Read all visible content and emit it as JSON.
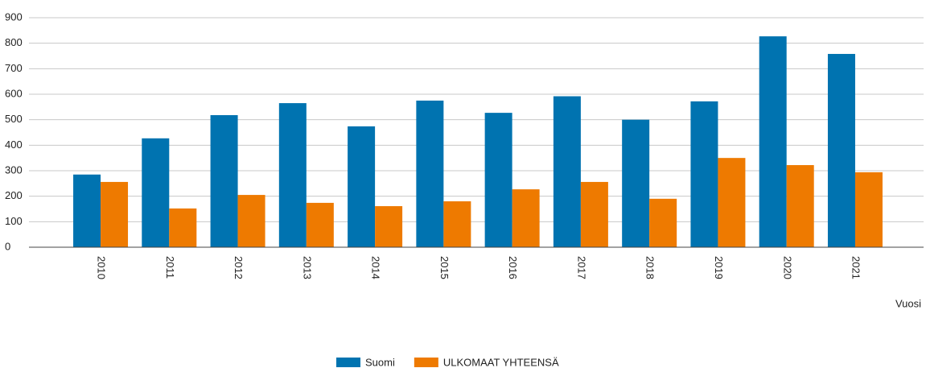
{
  "chart_data": {
    "type": "bar",
    "x_label": "Vuosi",
    "categories": [
      "2010",
      "2011",
      "2012",
      "2013",
      "2014",
      "2015",
      "2016",
      "2017",
      "2018",
      "2019",
      "2020",
      "2021"
    ],
    "series": [
      {
        "name": "Suomi",
        "color": "#0073b0",
        "values": [
          285,
          427,
          518,
          565,
          474,
          575,
          527,
          592,
          500,
          572,
          827,
          758
        ]
      },
      {
        "name": "ULKOMAAT YHTEENSÄ",
        "color": "#ee7a00",
        "values": [
          256,
          152,
          205,
          174,
          161,
          180,
          227,
          256,
          190,
          350,
          322,
          294
        ]
      }
    ],
    "ylim": [
      0,
      900
    ],
    "yticks": [
      0,
      100,
      200,
      300,
      400,
      500,
      600,
      700,
      800,
      900
    ],
    "grid": true,
    "legend": "bottom"
  }
}
